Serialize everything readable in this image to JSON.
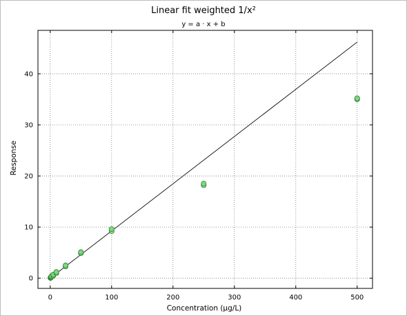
{
  "chart_data": {
    "type": "scatter",
    "title": "Linear fit weighted 1/x²",
    "subtitle": "y = a · x + b",
    "xlabel": "Concentration (µg/L)",
    "ylabel": "Response",
    "xlim": [
      -20,
      525
    ],
    "ylim": [
      -2,
      48.5
    ],
    "xticks": [
      0,
      100,
      200,
      300,
      400,
      500
    ],
    "yticks": [
      0,
      10,
      20,
      30,
      40
    ],
    "grid": true,
    "grid_style": "dotted",
    "point_color": "#7ed87e",
    "point_edge_color": "#2e7d32",
    "line_color": "#222222",
    "points": [
      {
        "x": 0.5,
        "y": 0.05
      },
      {
        "x": 0.5,
        "y": 0.1
      },
      {
        "x": 1,
        "y": 0.1
      },
      {
        "x": 1,
        "y": 0.2
      },
      {
        "x": 2,
        "y": 0.25
      },
      {
        "x": 2,
        "y": 0.4
      },
      {
        "x": 5,
        "y": 0.5
      },
      {
        "x": 5,
        "y": 0.7
      },
      {
        "x": 10,
        "y": 1.0
      },
      {
        "x": 10,
        "y": 1.2
      },
      {
        "x": 25,
        "y": 2.3
      },
      {
        "x": 25,
        "y": 2.5
      },
      {
        "x": 50,
        "y": 4.9
      },
      {
        "x": 50,
        "y": 5.1
      },
      {
        "x": 100,
        "y": 9.2
      },
      {
        "x": 100,
        "y": 9.6
      },
      {
        "x": 250,
        "y": 18.2
      },
      {
        "x": 250,
        "y": 18.5
      },
      {
        "x": 500,
        "y": 35.0
      },
      {
        "x": 500,
        "y": 35.2
      }
    ],
    "fit_line": {
      "x": [
        0,
        500
      ],
      "y": [
        0.0,
        46.2
      ]
    }
  }
}
